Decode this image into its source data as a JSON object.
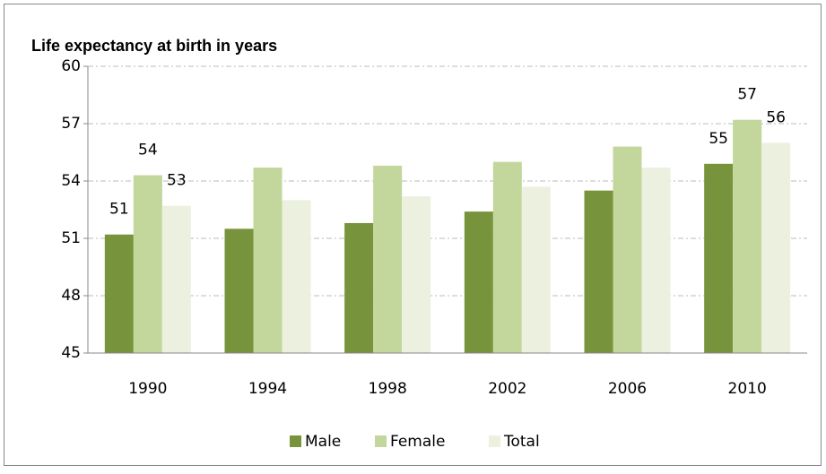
{
  "chart_data": {
    "type": "bar",
    "title": "Life expectancy at birth in years",
    "categories": [
      "1990",
      "1994",
      "1998",
      "2002",
      "2006",
      "2010"
    ],
    "series": [
      {
        "name": "Male",
        "color": "#77933c",
        "values": [
          51.2,
          51.5,
          51.8,
          52.4,
          53.5,
          54.9
        ],
        "value_labels": [
          "51",
          null,
          null,
          null,
          null,
          "55"
        ]
      },
      {
        "name": "Female",
        "color": "#c3d69b",
        "values": [
          54.3,
          54.7,
          54.8,
          55.0,
          55.8,
          57.2
        ],
        "value_labels": [
          "54",
          null,
          null,
          null,
          null,
          "57"
        ]
      },
      {
        "name": "Total",
        "color": "#ebf1de",
        "values": [
          52.7,
          53.0,
          53.2,
          53.7,
          54.7,
          56.0
        ],
        "value_labels": [
          "53",
          null,
          null,
          null,
          null,
          "56"
        ]
      }
    ],
    "ylim": [
      45,
      60
    ],
    "yticks": [
      45,
      48,
      51,
      54,
      57,
      60
    ],
    "grid": true,
    "legend": "bottom"
  }
}
